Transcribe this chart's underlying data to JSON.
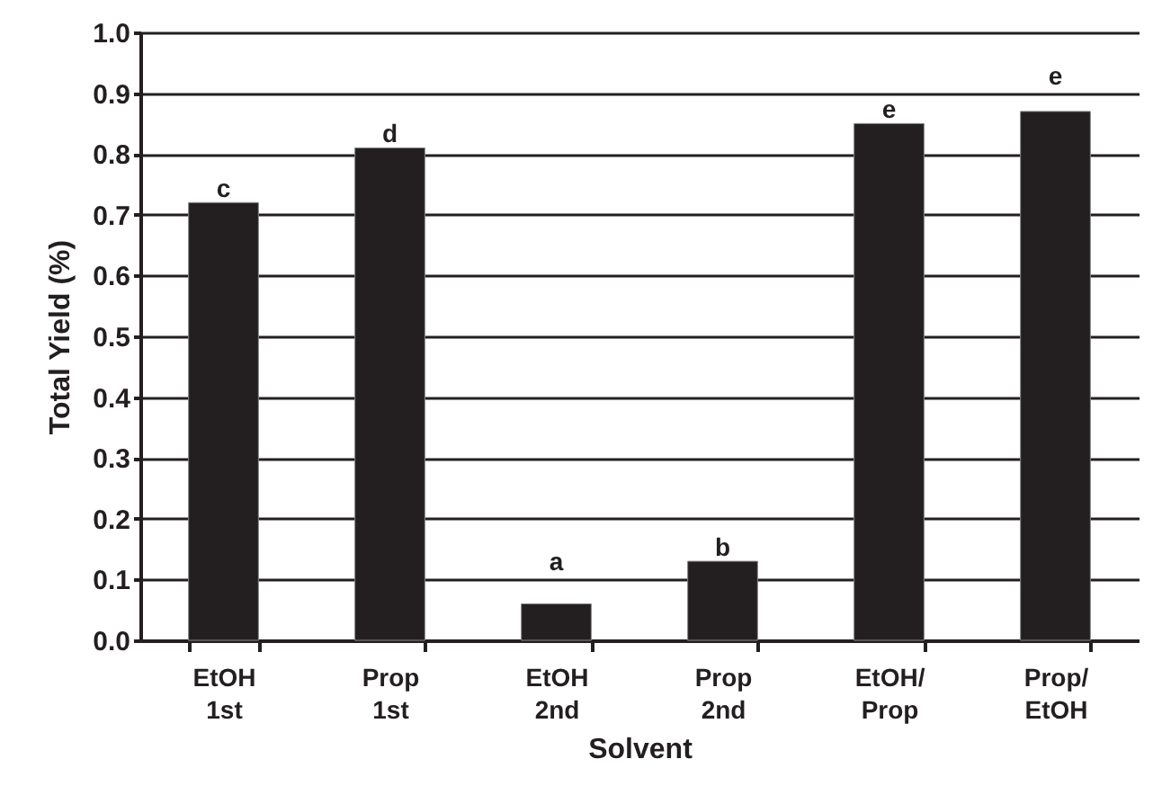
{
  "chart_data": {
    "type": "bar",
    "xlabel": "Solvent",
    "ylabel": "Total Yield (%)",
    "categories": [
      "EtOH\n1st",
      "Prop\n1st",
      "EtOH\n2nd",
      "Prop\n2nd",
      "EtOH/\nProp",
      "Prop/\nEtOH"
    ],
    "values": [
      0.72,
      0.81,
      0.06,
      0.13,
      0.85,
      0.87
    ],
    "color": "#231f20",
    "ylim": [
      0,
      1.0
    ],
    "yticks": [
      {
        "value": 0,
        "label": "0.0"
      },
      {
        "value": 0.1,
        "label": "0.1"
      },
      {
        "value": 0.2,
        "label": "0.2"
      },
      {
        "value": 0.3,
        "label": "0.3"
      },
      {
        "value": 0.4,
        "label": "0.4"
      },
      {
        "value": 0.5,
        "label": "0.5"
      },
      {
        "value": 0.6,
        "label": "0.6"
      },
      {
        "value": 0.7,
        "label": "0.7"
      },
      {
        "value": 0.8,
        "label": "0.8"
      },
      {
        "value": 0.9,
        "label": "0.9"
      },
      {
        "value": 1.0,
        "label": "1.0"
      }
    ],
    "grid": "y",
    "annotations": [
      {
        "text": "c",
        "x": "EtOH\n1st",
        "y": 0.72
      },
      {
        "text": "d",
        "x": "Prop\n1st",
        "y": 0.81
      },
      {
        "text": "a",
        "x": "EtOH\n2nd",
        "y": 0.06
      },
      {
        "text": "b",
        "x": "Prop\n2nd",
        "y": 0.13
      },
      {
        "text": "e",
        "x": "EtOH/\nProp",
        "y": 0.85
      },
      {
        "text": "e",
        "x": "Prop/\nEtOH",
        "y": 0.87
      }
    ]
  }
}
